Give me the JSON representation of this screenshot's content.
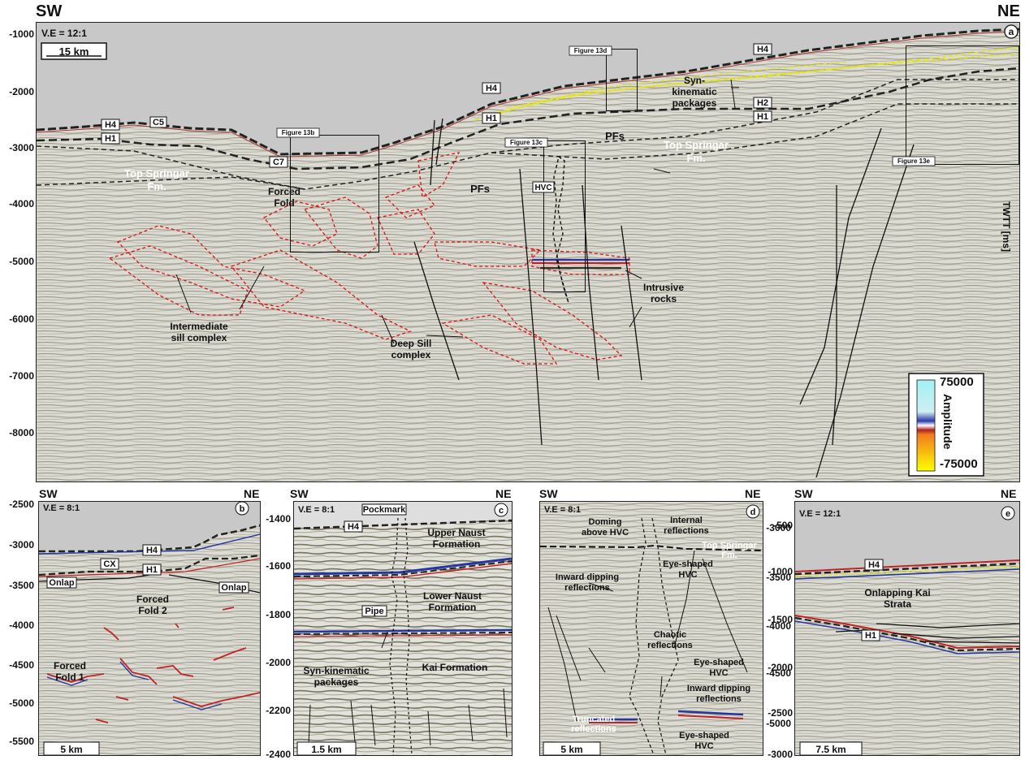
{
  "main": {
    "sw": "SW",
    "ne": "NE",
    "ve": "V.E = 12:1",
    "scale": "15 km",
    "panel_letter": "a",
    "y_ticks": [
      "-1000",
      "-2000",
      "-3000",
      "-4000",
      "-5000",
      "-6000",
      "-7000",
      "-8000"
    ],
    "axis_label": "TWTT [ms]",
    "horizons": [
      "H4",
      "H1",
      "C5",
      "C7",
      "H4",
      "H1",
      "H4",
      "H2",
      "H1"
    ],
    "figure_boxes": [
      "Figure 13b",
      "Figure 13c",
      "Figure 13d",
      "Figure 13e"
    ],
    "labels": {
      "top_springar_left": [
        "Top Springar",
        "Fm."
      ],
      "forced_fold": [
        "Forced",
        "Fold"
      ],
      "pfs_1": "PFs",
      "pfs_2": "PFs",
      "hvc": "HVC",
      "syn_kinematic": [
        "Syn-",
        "kinematic",
        "packages"
      ],
      "top_springar_right": [
        "Top Springar",
        "Fm."
      ],
      "intermediate": [
        "Intermediate",
        "sill complex"
      ],
      "deep_sill": [
        "Deep Sill",
        "complex"
      ],
      "intrusive": [
        "Intrusive",
        "rocks"
      ]
    },
    "legend": {
      "max": "75000",
      "min": "-75000",
      "title": "Amplitude"
    }
  },
  "panel_b": {
    "sw": "SW",
    "ne": "NE",
    "ve": "V.E = 8:1",
    "letter": "b",
    "scale": "5 km",
    "y_ticks": [
      "-2500",
      "-3000",
      "-3500",
      "-4000",
      "-4500",
      "-5000",
      "-5500"
    ],
    "labels": {
      "h4": "H4",
      "cx": "CX",
      "h1": "H1",
      "onlap_left": "Onlap",
      "onlap_right": "Onlap",
      "fold2": [
        "Forced",
        "Fold 2"
      ],
      "fold1": [
        "Forced",
        "Fold 1"
      ]
    }
  },
  "panel_c": {
    "sw": "SW",
    "ne": "NE",
    "ve": "V.E = 8:1",
    "letter": "c",
    "scale": "1.5 km",
    "y_ticks": [
      "-1400",
      "-1600",
      "-1800",
      "-2000",
      "-2200",
      "-2400"
    ],
    "labels": {
      "pockmark": "Pockmark",
      "h4": "H4",
      "pipe": "Pipe",
      "upper": [
        "Upper Naust",
        "Formation"
      ],
      "lower": [
        "Lower Naust",
        "Formation"
      ],
      "kai": "Kai Formation",
      "syn": [
        "Syn-kinematic",
        "packages"
      ]
    }
  },
  "panel_d": {
    "sw": "SW",
    "ne": "NE",
    "ve": "V.E = 8:1",
    "letter": "d",
    "scale": "5 km",
    "y_ticks": [
      "-3000",
      "-3500",
      "-4000",
      "-4500",
      "-5000"
    ],
    "labels": {
      "doming": [
        "Doming",
        "above HVC"
      ],
      "internal": [
        "Internal",
        "reflections"
      ],
      "top_springar": [
        "Top Springar",
        "Fm."
      ],
      "eye1": [
        "Eye-shaped",
        "HVC"
      ],
      "inward1": [
        "Inward dipping",
        "reflections"
      ],
      "chaotic": [
        "Chaotic",
        "reflections"
      ],
      "eye2": [
        "Eye-shaped",
        "HVC"
      ],
      "inward2": [
        "Inward dipping",
        "reflections"
      ],
      "truncated": [
        "Truncated",
        "reflections"
      ],
      "eye3": [
        "Eye-shaped",
        "HVC"
      ]
    }
  },
  "panel_e": {
    "sw": "SW",
    "ne": "NE",
    "ve": "V.E = 12:1",
    "letter": "e",
    "scale": "7.5 km",
    "y_ticks": [
      "-500",
      "-1000",
      "-1500",
      "-2000",
      "-2500",
      "-3000"
    ],
    "labels": {
      "h4": "H4",
      "h1": "H1",
      "onlapping": [
        "Onlapping Kai",
        "Strata"
      ]
    }
  }
}
